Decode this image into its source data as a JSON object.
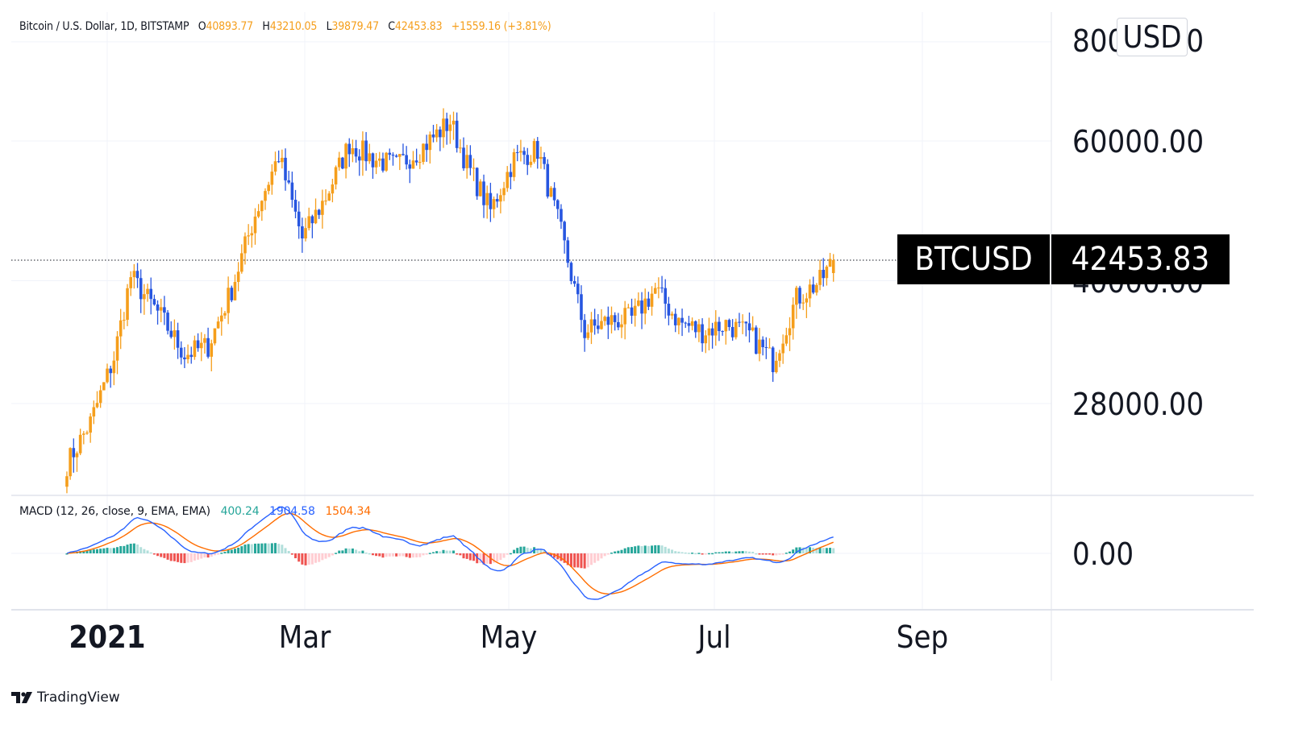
{
  "header": {
    "symbol_desc": "Bitcoin / U.S. Dollar, 1D, BITSTAMP",
    "open_label": "O",
    "open": "40893.77",
    "high_label": "H",
    "high": "43210.05",
    "low_label": "L",
    "low": "39879.47",
    "close_label": "C",
    "close": "42453.83",
    "change": "+1559.16 (+3.81%)"
  },
  "currency_badge": "USD",
  "last_price": {
    "symbol": "BTCUSD",
    "value": "42453.83"
  },
  "macd_legend": {
    "title": "MACD (12, 26, close, 9, EMA, EMA)",
    "histogram": "400.24",
    "macd": "1904.58",
    "signal": "1504.34"
  },
  "y_axis": {
    "labels": [
      "80000.00",
      "60000.00",
      "40000.00",
      "28000.00"
    ],
    "macd_labels": [
      "0.00"
    ]
  },
  "x_axis": {
    "labels": [
      "2021",
      "Mar",
      "May",
      "Jul",
      "Sep"
    ]
  },
  "brand": "TradingView",
  "colors": {
    "up": "#f59e1b",
    "down": "#2756e0",
    "hist_pos_strong": "#26a69a",
    "hist_pos_weak": "#b2dfdb",
    "hist_neg_strong": "#ef5350",
    "hist_neg_weak": "#ffcdd2",
    "macd_line": "#2962ff",
    "signal_line": "#ff6d00"
  },
  "chart_data": {
    "type": "candlestick",
    "title": "Bitcoin / U.S. Dollar, 1D, BITSTAMP",
    "scale": "log",
    "ylim": [
      21000,
      85000
    ],
    "y_ticks": [
      28000,
      40000,
      60000,
      80000
    ],
    "x_ticks": [
      "2021",
      "Mar",
      "May",
      "Jul",
      "Sep"
    ],
    "last": {
      "open": 40893.77,
      "high": 43210.05,
      "low": 39879.47,
      "close": 42453.83,
      "change": 1559.16,
      "change_pct": 3.81
    },
    "closes_weekly_approx": [
      {
        "date": "2020-12-20",
        "close": 23500
      },
      {
        "date": "2020-12-27",
        "close": 26500
      },
      {
        "date": "2021-01-03",
        "close": 32000
      },
      {
        "date": "2021-01-08",
        "close": 40500
      },
      {
        "date": "2021-01-17",
        "close": 36000
      },
      {
        "date": "2021-01-24",
        "close": 32300
      },
      {
        "date": "2021-01-31",
        "close": 33100
      },
      {
        "date": "2021-02-07",
        "close": 39000
      },
      {
        "date": "2021-02-14",
        "close": 48500
      },
      {
        "date": "2021-02-21",
        "close": 57500
      },
      {
        "date": "2021-02-28",
        "close": 45200
      },
      {
        "date": "2021-03-07",
        "close": 51000
      },
      {
        "date": "2021-03-14",
        "close": 59500
      },
      {
        "date": "2021-03-21",
        "close": 57000
      },
      {
        "date": "2021-03-28",
        "close": 55800
      },
      {
        "date": "2021-04-04",
        "close": 58500
      },
      {
        "date": "2021-04-13",
        "close": 63500
      },
      {
        "date": "2021-04-18",
        "close": 56000
      },
      {
        "date": "2021-04-25",
        "close": 49000
      },
      {
        "date": "2021-05-02",
        "close": 57000
      },
      {
        "date": "2021-05-09",
        "close": 58500
      },
      {
        "date": "2021-05-16",
        "close": 46000
      },
      {
        "date": "2021-05-23",
        "close": 34500
      },
      {
        "date": "2021-05-30",
        "close": 35600
      },
      {
        "date": "2021-06-06",
        "close": 35800
      },
      {
        "date": "2021-06-13",
        "close": 39000
      },
      {
        "date": "2021-06-20",
        "close": 35500
      },
      {
        "date": "2021-06-27",
        "close": 34500
      },
      {
        "date": "2021-07-04",
        "close": 35300
      },
      {
        "date": "2021-07-11",
        "close": 34200
      },
      {
        "date": "2021-07-18",
        "close": 31700
      },
      {
        "date": "2021-07-25",
        "close": 38000
      },
      {
        "date": "2021-08-01",
        "close": 39900
      },
      {
        "date": "2021-08-05",
        "close": 42453.83
      }
    ],
    "macd_panel": {
      "params": "12, 26, close, 9, EMA, EMA",
      "last": {
        "histogram": 400.24,
        "macd": 1904.58,
        "signal": 1504.34
      },
      "zero_label": "0.00"
    }
  }
}
